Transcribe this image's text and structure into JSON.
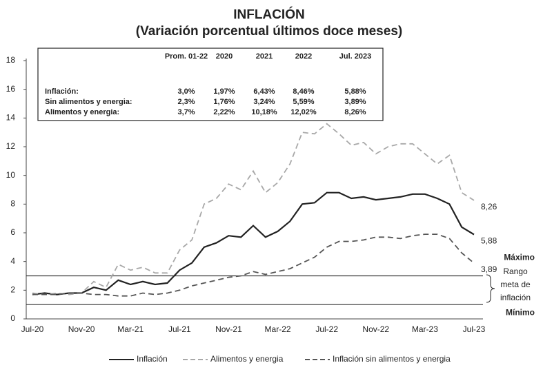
{
  "chart_data": {
    "type": "line",
    "title": "INFLACIÓN",
    "subtitle": "(Variación porcentual últimos doce meses)",
    "categories": [
      "Jul-20",
      null,
      null,
      null,
      "Nov-20",
      null,
      null,
      null,
      "Mar-21",
      null,
      null,
      null,
      "Jul-21",
      null,
      null,
      null,
      "Nov-21",
      null,
      null,
      null,
      "Mar-22",
      null,
      null,
      null,
      "Jul-22",
      null,
      null,
      null,
      "Nov-22",
      null,
      null,
      null,
      "Mar-23",
      null,
      null,
      null,
      "Jul-23"
    ],
    "series": [
      {
        "name": "Inflación",
        "color": "#222222",
        "dashed": false,
        "values": [
          1.7,
          1.8,
          1.7,
          1.8,
          1.8,
          2.2,
          2.0,
          2.7,
          2.4,
          2.6,
          2.4,
          2.5,
          3.4,
          3.9,
          5.0,
          5.3,
          5.8,
          5.7,
          6.5,
          5.7,
          6.1,
          6.8,
          8.0,
          8.1,
          8.8,
          8.8,
          8.4,
          8.5,
          8.3,
          8.4,
          8.5,
          8.7,
          8.7,
          8.4,
          8.0,
          6.4,
          5.88
        ],
        "value_labels": [
          null,
          null,
          null,
          null,
          null,
          null,
          null,
          null,
          null,
          null,
          null,
          null,
          null,
          null,
          null,
          null,
          null,
          null,
          null,
          null,
          null,
          null,
          null,
          null,
          null,
          null,
          null,
          null,
          null,
          null,
          null,
          null,
          null,
          null,
          null,
          null,
          "5,88"
        ]
      },
      {
        "name": "Alimentos y energia",
        "color": "#a8a8a8",
        "dashed": true,
        "values": [
          1.8,
          1.7,
          1.8,
          1.7,
          1.8,
          2.6,
          2.2,
          3.8,
          3.4,
          3.6,
          3.2,
          3.2,
          4.8,
          5.5,
          8.0,
          8.4,
          9.4,
          9.0,
          10.3,
          8.8,
          9.5,
          10.8,
          13.0,
          12.9,
          13.6,
          12.9,
          12.1,
          12.3,
          11.5,
          12.0,
          12.2,
          12.2,
          11.5,
          10.8,
          11.4,
          8.8,
          8.26
        ],
        "value_labels": [
          null,
          null,
          null,
          null,
          null,
          null,
          null,
          null,
          null,
          null,
          null,
          null,
          null,
          null,
          null,
          null,
          null,
          null,
          null,
          null,
          null,
          null,
          null,
          null,
          null,
          null,
          null,
          null,
          null,
          null,
          null,
          null,
          null,
          null,
          null,
          null,
          "8,26"
        ]
      },
      {
        "name": "Inflación sin alimentos y energia",
        "color": "#555555",
        "dashed": true,
        "values": [
          1.7,
          1.7,
          1.7,
          1.8,
          1.8,
          1.7,
          1.7,
          1.6,
          1.6,
          1.8,
          1.7,
          1.8,
          2.0,
          2.3,
          2.5,
          2.7,
          2.9,
          3.0,
          3.3,
          3.1,
          3.3,
          3.5,
          3.9,
          4.3,
          5.0,
          5.4,
          5.4,
          5.5,
          5.7,
          5.7,
          5.6,
          5.8,
          5.9,
          5.9,
          5.6,
          4.6,
          3.89
        ],
        "value_labels": [
          null,
          null,
          null,
          null,
          null,
          null,
          null,
          null,
          null,
          null,
          null,
          null,
          null,
          null,
          null,
          null,
          null,
          null,
          null,
          null,
          null,
          null,
          null,
          null,
          null,
          null,
          null,
          null,
          null,
          null,
          null,
          null,
          null,
          null,
          null,
          null,
          "3,89"
        ]
      }
    ],
    "ylim": [
      0,
      18
    ],
    "yticks": [
      0,
      2,
      4,
      6,
      8,
      10,
      12,
      14,
      16,
      18
    ],
    "grid": false,
    "legend": "bottom",
    "reference_lines": [
      {
        "value": 3,
        "label": "Máximo"
      },
      {
        "value": 1,
        "label": "Mínimo"
      }
    ],
    "range_annotation": [
      "Rango",
      "meta de",
      "inflación"
    ],
    "table": {
      "header": [
        "Prom. 01-22",
        "2020",
        "2021",
        "2022",
        "Jul. 2023"
      ],
      "rows": [
        [
          "Inflación:",
          "3,0%",
          "1,97%",
          "6,43%",
          "8,46%",
          "5,88%"
        ],
        [
          "Sin alimentos y energia:",
          "2,3%",
          "1,76%",
          "3,24%",
          "5,59%",
          "3,89%"
        ],
        [
          "Alimentos y energia:",
          "3,7%",
          "2,22%",
          "10,18%",
          "12,02%",
          "8,26%"
        ]
      ]
    }
  }
}
